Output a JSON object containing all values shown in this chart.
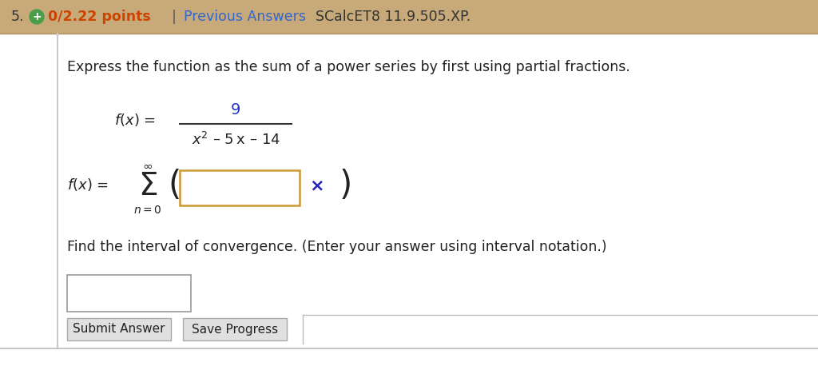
{
  "bg_color": "#ffffff",
  "header_bg": "#c8aa7a",
  "header_text_number": "5.",
  "header_points_bold": "0/2.22 points",
  "header_points_color": "#cc4400",
  "header_separator": "|",
  "header_prev_answers": "Previous Answers",
  "header_prev_color": "#3366cc",
  "header_course": "SCalcET8 11.9.505.XP.",
  "header_course_color": "#333333",
  "instruction": "Express the function as the sum of a power series by first using partial fractions.",
  "fraction_numerator": "9",
  "fraction_denominator": "x² – 5x – 14",
  "input_box_color": "#cc9933",
  "x_mark_color": "#2222bb",
  "convergence_text": "Find the interval of convergence. (Enter your answer using interval notation.)",
  "button1": "Submit Answer",
  "button2": "Save Progress",
  "divider_color": "#bbbbbb",
  "left_border_color": "#cccccc",
  "body_bg": "#ffffff"
}
